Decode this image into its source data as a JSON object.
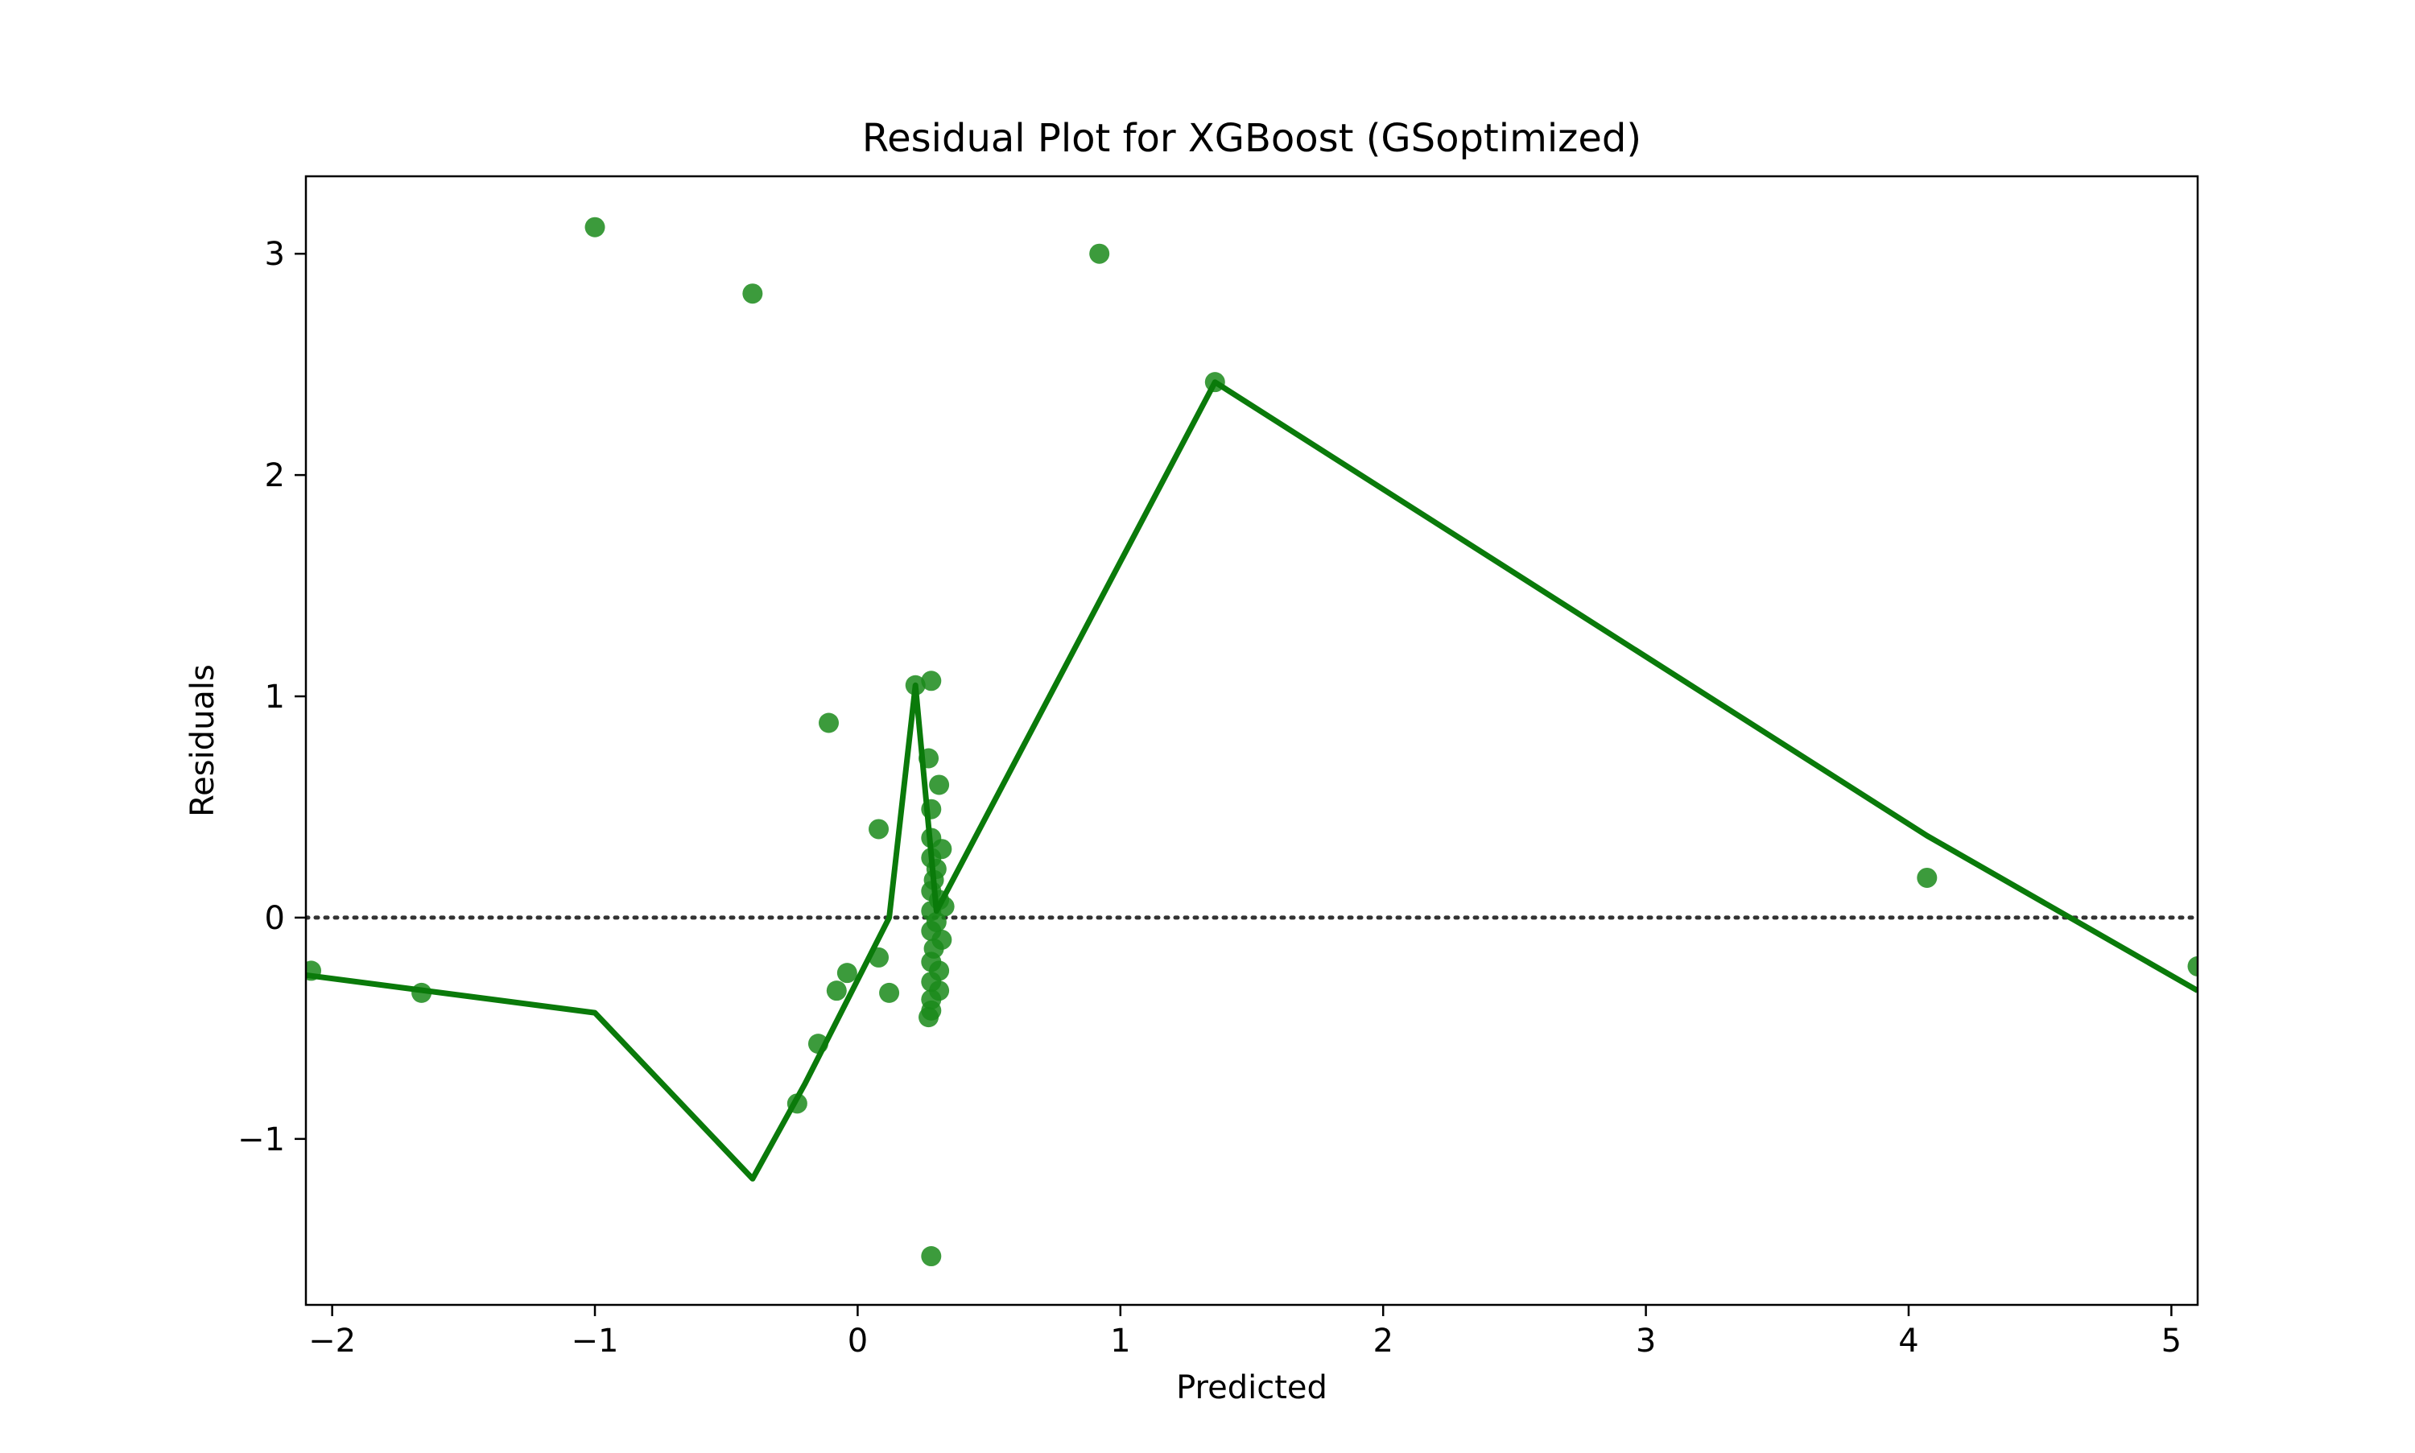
{
  "chart_data": {
    "type": "scatter",
    "title": "Residual Plot for XGBoost (GSoptimized)",
    "xlabel": "Predicted",
    "ylabel": "Residuals",
    "xlim": [
      -2.1,
      5.1
    ],
    "ylim": [
      -1.75,
      3.35
    ],
    "xticks": [
      -2,
      -1,
      0,
      1,
      2,
      3,
      4,
      5
    ],
    "xtick_labels": [
      "−2",
      "−1",
      "0",
      "1",
      "2",
      "3",
      "4",
      "5"
    ],
    "yticks": [
      -1,
      0,
      1,
      2,
      3
    ],
    "ytick_labels": [
      "−1",
      "0",
      "1",
      "2",
      "3"
    ],
    "reference_line": {
      "y": 0,
      "style": "dotted",
      "color": "#333333"
    },
    "grid": false,
    "point_color": "#1a8a1a",
    "line_color": "#0a7a0a",
    "points": [
      {
        "x": -2.08,
        "y": -0.24
      },
      {
        "x": -1.66,
        "y": -0.34
      },
      {
        "x": -1.0,
        "y": 3.12
      },
      {
        "x": -0.4,
        "y": 2.82
      },
      {
        "x": 0.92,
        "y": 3.0
      },
      {
        "x": 1.36,
        "y": 2.42
      },
      {
        "x": -0.11,
        "y": 0.88
      },
      {
        "x": 0.08,
        "y": 0.4
      },
      {
        "x": 0.22,
        "y": 1.05
      },
      {
        "x": 0.28,
        "y": 1.07
      },
      {
        "x": 0.27,
        "y": 0.72
      },
      {
        "x": 0.31,
        "y": 0.6
      },
      {
        "x": 0.28,
        "y": 0.49
      },
      {
        "x": 0.28,
        "y": 0.36
      },
      {
        "x": 0.32,
        "y": 0.31
      },
      {
        "x": 0.28,
        "y": 0.27
      },
      {
        "x": 0.3,
        "y": 0.22
      },
      {
        "x": 0.29,
        "y": 0.17
      },
      {
        "x": 0.28,
        "y": 0.12
      },
      {
        "x": 0.31,
        "y": 0.08
      },
      {
        "x": 0.33,
        "y": 0.05
      },
      {
        "x": 0.28,
        "y": 0.03
      },
      {
        "x": 0.3,
        "y": -0.02
      },
      {
        "x": 0.28,
        "y": -0.06
      },
      {
        "x": 0.32,
        "y": -0.1
      },
      {
        "x": 0.29,
        "y": -0.14
      },
      {
        "x": 0.28,
        "y": -0.2
      },
      {
        "x": 0.31,
        "y": -0.24
      },
      {
        "x": 0.28,
        "y": -0.29
      },
      {
        "x": 0.31,
        "y": -0.33
      },
      {
        "x": 0.28,
        "y": -0.37
      },
      {
        "x": 0.28,
        "y": -0.42
      },
      {
        "x": 0.27,
        "y": -0.45
      },
      {
        "x": 0.08,
        "y": -0.18
      },
      {
        "x": -0.04,
        "y": -0.25
      },
      {
        "x": -0.08,
        "y": -0.33
      },
      {
        "x": 0.12,
        "y": -0.34
      },
      {
        "x": -0.15,
        "y": -0.57
      },
      {
        "x": -0.23,
        "y": -0.84
      },
      {
        "x": 0.28,
        "y": -1.53
      },
      {
        "x": 4.07,
        "y": 0.18
      },
      {
        "x": 5.1,
        "y": -0.22
      }
    ],
    "lowess_line": [
      {
        "x": -2.1,
        "y": -0.26
      },
      {
        "x": -1.0,
        "y": -0.43
      },
      {
        "x": -0.4,
        "y": -1.18
      },
      {
        "x": -0.2,
        "y": -0.75
      },
      {
        "x": 0.12,
        "y": 0.0
      },
      {
        "x": 0.22,
        "y": 1.05
      },
      {
        "x": 0.3,
        "y": 0.03
      },
      {
        "x": 1.36,
        "y": 2.42
      },
      {
        "x": 4.07,
        "y": 0.37
      },
      {
        "x": 5.1,
        "y": -0.33
      }
    ]
  }
}
